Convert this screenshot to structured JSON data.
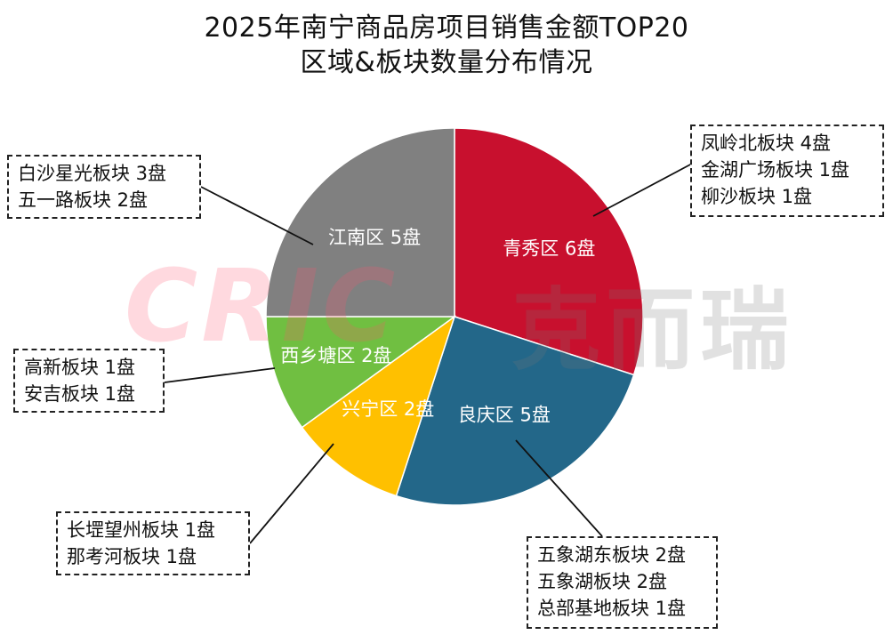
{
  "title": {
    "line1": "2025年南宁商品房项目销售金额TOP20",
    "line2": "区域&板块数量分布情况"
  },
  "watermark": {
    "latin": "CRIC",
    "chinese": "克而瑞"
  },
  "chart_data": {
    "type": "pie",
    "title": "2025年南宁商品房项目销售金额TOP20 区域&板块数量分布情况",
    "unit": "盘",
    "start_angle_deg": 0,
    "direction": "clockwise",
    "slices": [
      {
        "name": "青秀区",
        "value": 6,
        "label": "青秀区 6盘",
        "color": "#C8102E"
      },
      {
        "name": "良庆区",
        "value": 5,
        "label": "良庆区 5盘",
        "color": "#236789"
      },
      {
        "name": "兴宁区",
        "value": 2,
        "label": "兴宁区 2盘",
        "color": "#FFC000"
      },
      {
        "name": "西乡塘区",
        "value": 2,
        "label": "西乡塘区 2盘",
        "color": "#70BF41"
      },
      {
        "name": "江南区",
        "value": 5,
        "label": "江南区 5盘",
        "color": "#808080"
      }
    ],
    "annotations": [
      {
        "region": "青秀区",
        "lines": [
          "凤岭北板块 4盘",
          "金湖广场板块 1盘",
          "柳沙板块 1盘"
        ]
      },
      {
        "region": "江南区",
        "lines": [
          "白沙星光板块 3盘",
          "五一路板块 2盘"
        ]
      },
      {
        "region": "西乡塘区",
        "lines": [
          "高新板块 1盘",
          "安吉板块 1盘"
        ]
      },
      {
        "region": "兴宁区",
        "lines": [
          "长堽望州板块 1盘",
          "那考河板块 1盘"
        ]
      },
      {
        "region": "良庆区",
        "lines": [
          "五象湖东板块 2盘",
          "五象湖板块 2盘",
          "总部基地板块 1盘"
        ]
      }
    ]
  }
}
